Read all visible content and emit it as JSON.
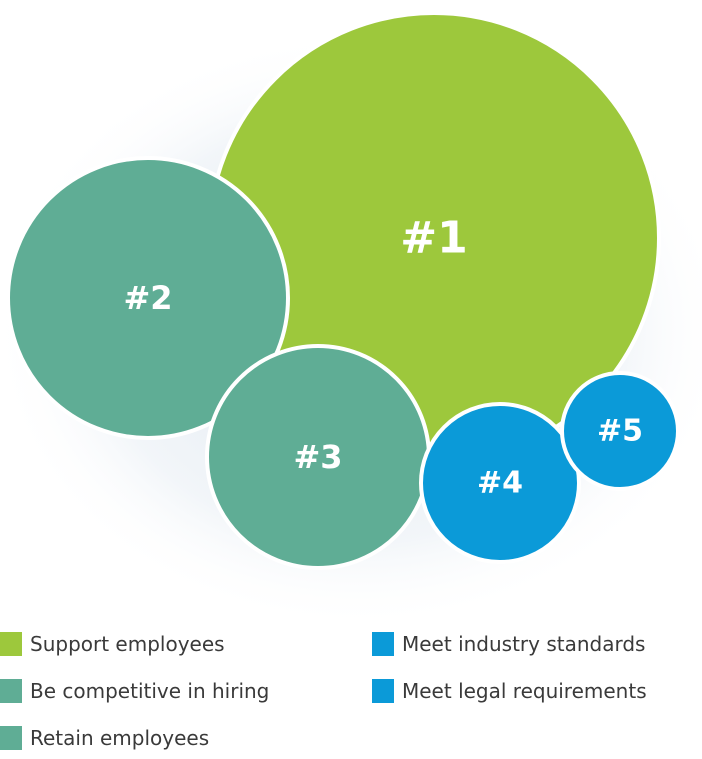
{
  "bubbles": [
    {
      "label": "#1",
      "color": "#9dc83c"
    },
    {
      "label": "#2",
      "color": "#5fad95"
    },
    {
      "label": "#3",
      "color": "#5fad95"
    },
    {
      "label": "#4",
      "color": "#0b9ad8"
    },
    {
      "label": "#5",
      "color": "#0b9ad8"
    }
  ],
  "legend": [
    {
      "label": "Support employees",
      "color": "#9dc83c"
    },
    {
      "label": "Be competitive in hiring",
      "color": "#5fad95"
    },
    {
      "label": "Retain employees",
      "color": "#5fad95"
    },
    {
      "label": "Meet industry standards",
      "color": "#0b9ad8"
    },
    {
      "label": "Meet legal requirements",
      "color": "#0b9ad8"
    }
  ]
}
